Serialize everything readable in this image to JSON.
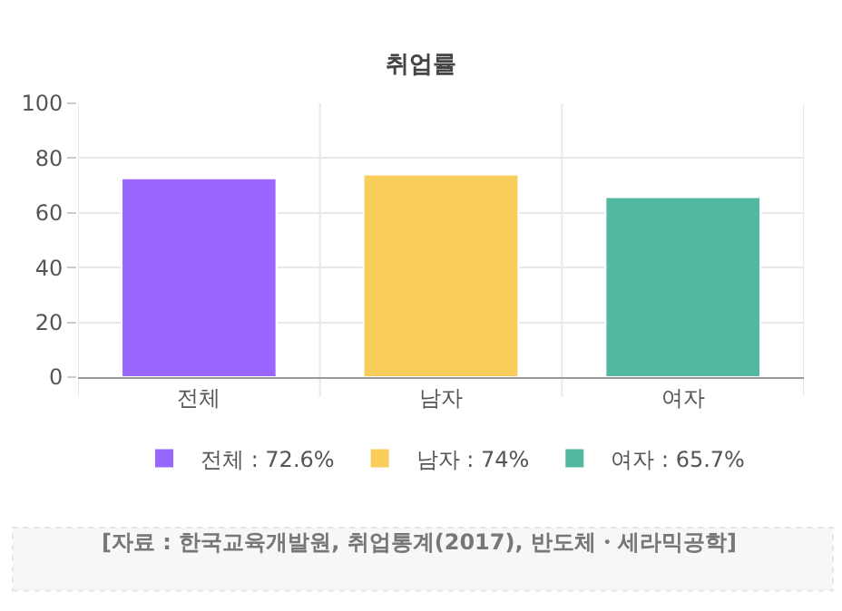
{
  "chart_data": {
    "type": "bar",
    "title": "취업률",
    "categories": [
      "전체",
      "남자",
      "여자"
    ],
    "series": [
      {
        "name": "전체 : 72.6%",
        "color": "#9966ff",
        "values": [
          72.6,
          null,
          null
        ]
      },
      {
        "name": "남자 : 74%",
        "color": "#f8cd5a",
        "values": [
          null,
          74,
          null
        ]
      },
      {
        "name": "여자 : 65.7%",
        "color": "#52b8a0",
        "values": [
          null,
          null,
          65.7
        ]
      }
    ],
    "ylim": [
      0,
      100
    ],
    "yticks": [
      0,
      20,
      40,
      60,
      80,
      100
    ],
    "grid": true,
    "legend": "bottom",
    "annotations": [
      "[자료 : 한국교육개발원, 취업통계(2017), 반도체・세라믹공학]"
    ]
  }
}
